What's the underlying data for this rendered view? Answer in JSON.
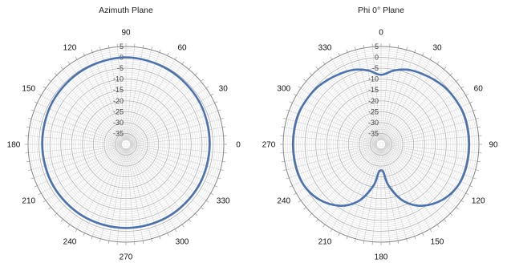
{
  "chart_data": [
    {
      "type": "polar-line",
      "title": "Azimuth Plane",
      "radial_ticks": [
        5,
        0,
        -5,
        -10,
        -15,
        -20,
        -25,
        -30,
        -35
      ],
      "radial_range": [
        -40,
        5
      ],
      "angle_labels": [
        "90",
        "60",
        "30",
        "0",
        "330",
        "300",
        "270",
        "240",
        "210",
        "180",
        "150",
        "120"
      ],
      "angle_direction": "counterclockwise, 0 at right",
      "grid": true,
      "series_color": "#4a72b0",
      "series": [
        {
          "angles_deg": [
            0,
            30,
            60,
            90,
            120,
            150,
            180,
            210,
            240,
            270,
            300,
            330
          ],
          "values_db": [
            -1.5,
            -1.0,
            -0.5,
            0.0,
            -0.5,
            -1.0,
            -1.5,
            -1.5,
            -1.5,
            -1.5,
            -1.5,
            -1.5
          ]
        }
      ]
    },
    {
      "type": "polar-line",
      "title": "Phi 0° Plane",
      "radial_ticks": [
        5,
        0,
        -5,
        -10,
        -15,
        -20,
        -25,
        -30,
        -35
      ],
      "radial_range": [
        -40,
        5
      ],
      "angle_labels": [
        "0",
        "30",
        "60",
        "90",
        "120",
        "150",
        "180",
        "210",
        "240",
        "270",
        "300",
        "330"
      ],
      "angle_direction": "clockwise, 0 at top",
      "grid": true,
      "series_color": "#4a72b0",
      "series": [
        {
          "angles_deg": [
            0,
            10,
            20,
            30,
            40,
            50,
            60,
            70,
            80,
            90,
            100,
            110,
            120,
            130,
            140,
            150,
            160,
            170,
            175,
            180,
            185,
            190,
            200,
            210,
            220,
            230,
            240,
            250,
            260,
            270,
            280,
            290,
            300,
            310,
            320,
            330,
            340,
            350
          ],
          "values_db": [
            -8,
            -5.5,
            -3.5,
            -2.5,
            -1.5,
            -0.5,
            0,
            0.5,
            0.5,
            0.5,
            0.5,
            0.5,
            0,
            -1.5,
            -4,
            -7.5,
            -13,
            -21,
            -27,
            -28,
            -27,
            -21,
            -13,
            -7.5,
            -4,
            -1.5,
            0,
            0.5,
            0.5,
            0.5,
            0.5,
            0.5,
            0,
            -0.5,
            -1.5,
            -2.5,
            -3.5,
            -5.5
          ]
        }
      ]
    }
  ]
}
